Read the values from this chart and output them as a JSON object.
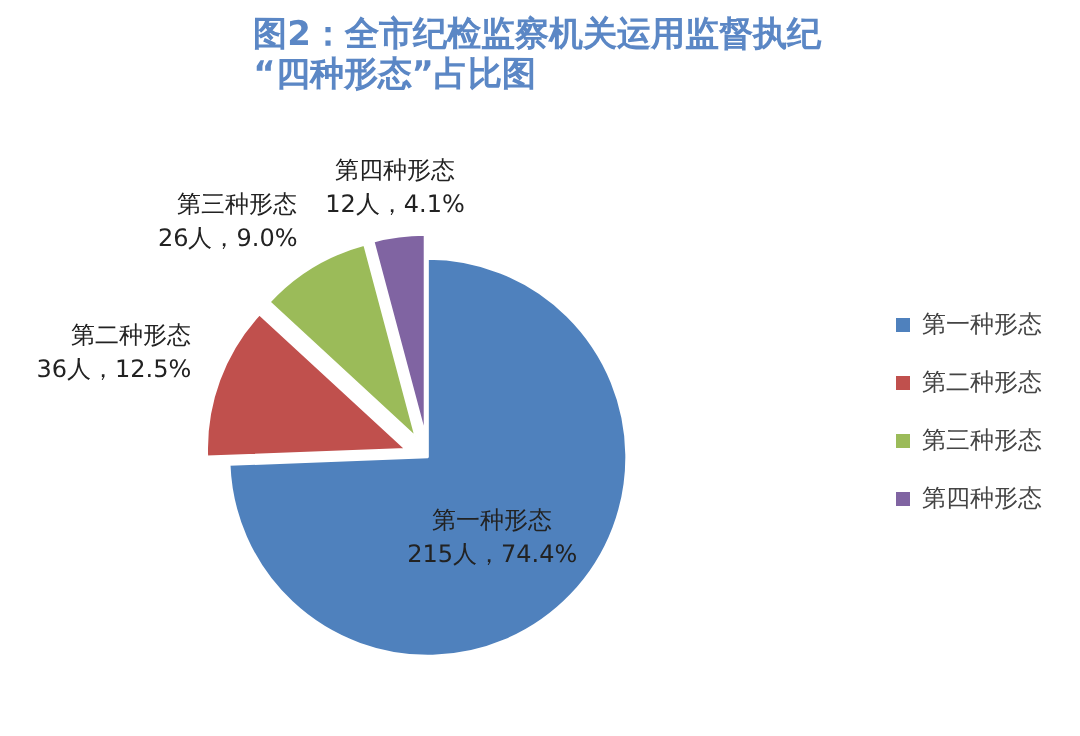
{
  "chart_data": {
    "type": "pie",
    "title": "图2：全市纪检监察机关运用监督执纪\n“四种形态”占比图",
    "categories": [
      "第一种形态",
      "第二种形态",
      "第三种形态",
      "第四种形态"
    ],
    "values": [
      215,
      36,
      26,
      12
    ],
    "value_labels": [
      "215人，74.4%",
      "36人，12.5%",
      "26人，9.0%",
      "12人，4.1%"
    ],
    "colors": [
      "#4f81bd",
      "#c0504d",
      "#9bbb59",
      "#8064a2"
    ],
    "legend": "right"
  }
}
